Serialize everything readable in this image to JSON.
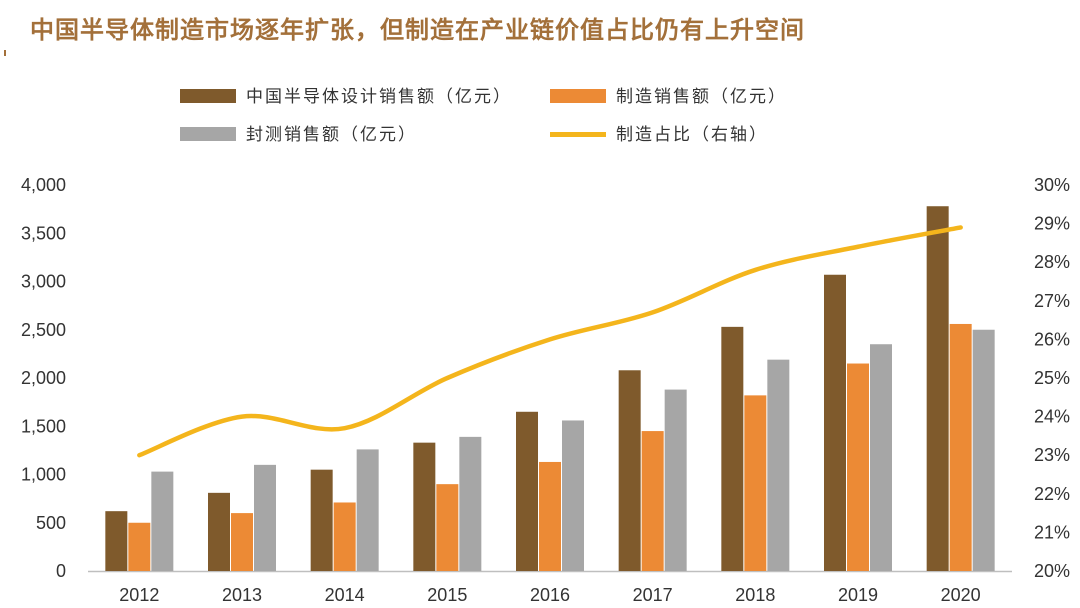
{
  "title": "中国半导体制造市场逐年扩张，但制造在产业链价值占比仍有上升空间",
  "chart_data": {
    "type": "bar",
    "categories": [
      "2012",
      "2013",
      "2014",
      "2015",
      "2016",
      "2017",
      "2018",
      "2019",
      "2020"
    ],
    "series": [
      {
        "name": "中国半导体设计销售额（亿元）",
        "type": "bar",
        "axis": "left",
        "color": "#7f5a2c",
        "values": [
          620,
          810,
          1050,
          1330,
          1650,
          2080,
          2530,
          3070,
          3780
        ]
      },
      {
        "name": "制造销售额（亿元）",
        "type": "bar",
        "axis": "left",
        "color": "#ec8a35",
        "values": [
          500,
          600,
          710,
          900,
          1130,
          1450,
          1820,
          2150,
          2560
        ]
      },
      {
        "name": "封测销售额（亿元）",
        "type": "bar",
        "axis": "left",
        "color": "#a6a6a6",
        "values": [
          1030,
          1100,
          1260,
          1390,
          1560,
          1880,
          2190,
          2350,
          2500
        ]
      },
      {
        "name": "制造占比（右轴）",
        "type": "line",
        "axis": "right",
        "color": "#f4b51c",
        "values": [
          23.0,
          24.0,
          23.7,
          25.0,
          26.0,
          26.7,
          27.8,
          28.4,
          28.9
        ]
      }
    ],
    "y_left": {
      "min": 0,
      "max": 4000,
      "step": 500,
      "tick_labels": [
        "0",
        "500",
        "1,000",
        "1,500",
        "2,000",
        "2,500",
        "3,000",
        "3,500",
        "4,000"
      ]
    },
    "y_right": {
      "min": 20,
      "max": 30,
      "step": 1,
      "tick_labels": [
        "20%",
        "21%",
        "22%",
        "23%",
        "24%",
        "25%",
        "26%",
        "27%",
        "28%",
        "29%",
        "30%"
      ]
    },
    "grid": false,
    "legend_position": "top"
  }
}
